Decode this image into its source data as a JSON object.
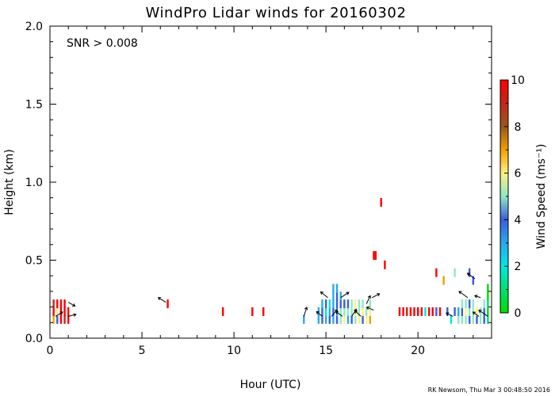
{
  "chart_data": {
    "type": "scatter",
    "title": "WindPro Lidar winds for 20160302",
    "xlabel": "Hour (UTC)",
    "ylabel": "Height (km)",
    "xlim": [
      0,
      24
    ],
    "ylim": [
      0,
      2.0
    ],
    "xticks": [
      0,
      5,
      10,
      15,
      20
    ],
    "yticks": [
      0.0,
      0.5,
      1.0,
      1.5,
      2.0
    ],
    "ytick_labels": [
      "0.0",
      "0.5",
      "1.0",
      "1.5",
      "2.0"
    ],
    "annotation": "SNR > 0.008",
    "credit": "RK Newsom, Thu Mar  3 00:48:50 2016",
    "colorbar": {
      "label": "Wind Speed (ms⁻¹)",
      "min": 0,
      "max": 10,
      "ticks": [
        0,
        2,
        4,
        6,
        8,
        10
      ],
      "colors": [
        "#00dd00",
        "#00e070",
        "#00e8e0",
        "#2aa8f0",
        "#3a5ed8",
        "#8ee8c8",
        "#fff080",
        "#f0a000",
        "#9a5818",
        "#c02818",
        "#ff0000"
      ]
    },
    "series": [
      {
        "values": [
          {
            "x": 0.2,
            "y": 0.12,
            "speed": 7.2
          },
          {
            "x": 0.2,
            "y": 0.17,
            "speed": 10.0
          },
          {
            "x": 0.2,
            "y": 0.22,
            "speed": 9.0
          },
          {
            "x": 0.4,
            "y": 0.12,
            "speed": 4.3
          },
          {
            "x": 0.4,
            "y": 0.17,
            "speed": 6.3
          },
          {
            "x": 0.4,
            "y": 0.22,
            "speed": 10.0
          },
          {
            "x": 0.6,
            "y": 0.12,
            "speed": 10.0
          },
          {
            "x": 0.6,
            "y": 0.17,
            "speed": 10.0
          },
          {
            "x": 0.6,
            "y": 0.22,
            "speed": 10.0
          },
          {
            "x": 0.8,
            "y": 0.12,
            "speed": 9.2
          },
          {
            "x": 0.8,
            "y": 0.17,
            "speed": 10.0
          },
          {
            "x": 0.8,
            "y": 0.22,
            "speed": 10.0
          },
          {
            "x": 1.0,
            "y": 0.12,
            "speed": 10.0
          },
          {
            "x": 1.0,
            "y": 0.17,
            "speed": 9.6
          },
          {
            "x": 6.4,
            "y": 0.22,
            "speed": 10.0
          },
          {
            "x": 9.4,
            "y": 0.17,
            "speed": 10.0
          },
          {
            "x": 11.0,
            "y": 0.17,
            "speed": 10.0
          },
          {
            "x": 11.6,
            "y": 0.17,
            "speed": 10.0
          },
          {
            "x": 13.8,
            "y": 0.12,
            "speed": 2.6
          },
          {
            "x": 14.6,
            "y": 0.12,
            "speed": 2.8
          },
          {
            "x": 14.6,
            "y": 0.17,
            "speed": 3.2
          },
          {
            "x": 14.8,
            "y": 0.12,
            "speed": 3.5
          },
          {
            "x": 14.8,
            "y": 0.17,
            "speed": 4.2
          },
          {
            "x": 14.8,
            "y": 0.22,
            "speed": 3.0
          },
          {
            "x": 15.0,
            "y": 0.12,
            "speed": 3.1
          },
          {
            "x": 15.0,
            "y": 0.17,
            "speed": 2.4
          },
          {
            "x": 15.0,
            "y": 0.22,
            "speed": 3.6
          },
          {
            "x": 15.2,
            "y": 0.12,
            "speed": 4.0
          },
          {
            "x": 15.2,
            "y": 0.17,
            "speed": 3.3
          },
          {
            "x": 15.2,
            "y": 0.22,
            "speed": 2.2
          },
          {
            "x": 15.4,
            "y": 0.12,
            "speed": 2.5
          },
          {
            "x": 15.4,
            "y": 0.17,
            "speed": 4.4
          },
          {
            "x": 15.4,
            "y": 0.22,
            "speed": 3.1
          },
          {
            "x": 15.4,
            "y": 0.27,
            "speed": 2.9
          },
          {
            "x": 15.4,
            "y": 0.32,
            "speed": 3.4
          },
          {
            "x": 15.6,
            "y": 0.12,
            "speed": 3.7
          },
          {
            "x": 15.6,
            "y": 0.17,
            "speed": 2.9
          },
          {
            "x": 15.6,
            "y": 0.22,
            "speed": 4.1
          },
          {
            "x": 15.6,
            "y": 0.27,
            "speed": 3.6
          },
          {
            "x": 15.6,
            "y": 0.32,
            "speed": 2.7
          },
          {
            "x": 15.8,
            "y": 0.12,
            "speed": 4.6
          },
          {
            "x": 15.8,
            "y": 0.17,
            "speed": 5.2
          },
          {
            "x": 15.8,
            "y": 0.22,
            "speed": 3.9
          },
          {
            "x": 15.8,
            "y": 0.27,
            "speed": 3.0
          },
          {
            "x": 16.0,
            "y": 0.12,
            "speed": 5.6
          },
          {
            "x": 16.0,
            "y": 0.17,
            "speed": 4.8
          },
          {
            "x": 16.0,
            "y": 0.22,
            "speed": 4.3
          },
          {
            "x": 16.2,
            "y": 0.12,
            "speed": 3.4
          },
          {
            "x": 16.2,
            "y": 0.17,
            "speed": 5.1
          },
          {
            "x": 16.2,
            "y": 0.22,
            "speed": 4.0
          },
          {
            "x": 16.4,
            "y": 0.12,
            "speed": 4.1
          },
          {
            "x": 16.4,
            "y": 0.17,
            "speed": 4.9
          },
          {
            "x": 16.4,
            "y": 0.22,
            "speed": 5.3
          },
          {
            "x": 16.6,
            "y": 0.12,
            "speed": 5.4
          },
          {
            "x": 16.6,
            "y": 0.17,
            "speed": 6.2
          },
          {
            "x": 16.6,
            "y": 0.22,
            "speed": 5.5
          },
          {
            "x": 16.8,
            "y": 0.12,
            "speed": 6.4
          },
          {
            "x": 16.8,
            "y": 0.17,
            "speed": 5.0
          },
          {
            "x": 16.8,
            "y": 0.22,
            "speed": 4.6
          },
          {
            "x": 17.0,
            "y": 0.12,
            "speed": 4.4
          },
          {
            "x": 17.0,
            "y": 0.17,
            "speed": 5.8
          },
          {
            "x": 17.0,
            "y": 0.22,
            "speed": 5.0
          },
          {
            "x": 17.2,
            "y": 0.12,
            "speed": 5.9
          },
          {
            "x": 17.2,
            "y": 0.17,
            "speed": 4.7
          },
          {
            "x": 17.4,
            "y": 0.12,
            "speed": 7.0
          },
          {
            "x": 17.4,
            "y": 0.17,
            "speed": 5.7
          },
          {
            "x": 17.4,
            "y": 0.22,
            "speed": 4.5
          },
          {
            "x": 17.6,
            "y": 0.53,
            "speed": 10.0
          },
          {
            "x": 17.7,
            "y": 0.53,
            "speed": 10.0
          },
          {
            "x": 18.0,
            "y": 0.87,
            "speed": 10.0
          },
          {
            "x": 18.2,
            "y": 0.47,
            "speed": 10.0
          },
          {
            "x": 19.0,
            "y": 0.17,
            "speed": 10.0
          },
          {
            "x": 19.2,
            "y": 0.17,
            "speed": 10.0
          },
          {
            "x": 19.4,
            "y": 0.17,
            "speed": 9.2
          },
          {
            "x": 19.6,
            "y": 0.17,
            "speed": 10.0
          },
          {
            "x": 19.8,
            "y": 0.17,
            "speed": 10.0
          },
          {
            "x": 20.0,
            "y": 0.17,
            "speed": 10.0
          },
          {
            "x": 20.2,
            "y": 0.17,
            "speed": 9.5
          },
          {
            "x": 20.4,
            "y": 0.17,
            "speed": 2.4
          },
          {
            "x": 20.6,
            "y": 0.17,
            "speed": 10.0
          },
          {
            "x": 20.8,
            "y": 0.17,
            "speed": 10.0
          },
          {
            "x": 21.0,
            "y": 0.17,
            "speed": 4.3
          },
          {
            "x": 21.0,
            "y": 0.42,
            "speed": 10.0
          },
          {
            "x": 21.2,
            "y": 0.17,
            "speed": 10.0
          },
          {
            "x": 21.4,
            "y": 0.37,
            "speed": 6.5
          },
          {
            "x": 21.6,
            "y": 0.17,
            "speed": 4.1
          },
          {
            "x": 21.8,
            "y": 0.12,
            "speed": 2.0
          },
          {
            "x": 22.0,
            "y": 0.17,
            "speed": 3.7
          },
          {
            "x": 22.0,
            "y": 0.42,
            "speed": 4.5
          },
          {
            "x": 22.2,
            "y": 0.12,
            "speed": 4.6
          },
          {
            "x": 22.2,
            "y": 0.17,
            "speed": 3.0
          },
          {
            "x": 22.4,
            "y": 0.12,
            "speed": 5.0
          },
          {
            "x": 22.4,
            "y": 0.17,
            "speed": 4.3
          },
          {
            "x": 22.4,
            "y": 0.22,
            "speed": 5.4
          },
          {
            "x": 22.6,
            "y": 0.12,
            "speed": 4.9
          },
          {
            "x": 22.6,
            "y": 0.17,
            "speed": 5.5
          },
          {
            "x": 22.6,
            "y": 0.22,
            "speed": 4.8
          },
          {
            "x": 22.8,
            "y": 0.12,
            "speed": 3.9
          },
          {
            "x": 22.8,
            "y": 0.17,
            "speed": 5.1
          },
          {
            "x": 22.8,
            "y": 0.22,
            "speed": 4.1
          },
          {
            "x": 22.8,
            "y": 0.42,
            "speed": 4.4
          },
          {
            "x": 23.0,
            "y": 0.12,
            "speed": 5.3
          },
          {
            "x": 23.0,
            "y": 0.17,
            "speed": 4.5
          },
          {
            "x": 23.0,
            "y": 0.22,
            "speed": 4.6
          },
          {
            "x": 23.0,
            "y": 0.37,
            "speed": 3.8
          },
          {
            "x": 23.2,
            "y": 0.12,
            "speed": 4.2
          },
          {
            "x": 23.2,
            "y": 0.17,
            "speed": 5.6
          },
          {
            "x": 23.4,
            "y": 0.12,
            "speed": 4.7
          },
          {
            "x": 23.4,
            "y": 0.17,
            "speed": 5.2
          },
          {
            "x": 23.6,
            "y": 0.12,
            "speed": 4.4
          },
          {
            "x": 23.6,
            "y": 0.17,
            "speed": 3.6
          },
          {
            "x": 23.6,
            "y": 0.22,
            "speed": 4.9
          },
          {
            "x": 23.8,
            "y": 0.12,
            "speed": 0.5
          },
          {
            "x": 23.8,
            "y": 0.17,
            "speed": 0.3
          },
          {
            "x": 23.8,
            "y": 0.22,
            "speed": 0.6
          },
          {
            "x": 23.8,
            "y": 0.27,
            "speed": 0.2
          },
          {
            "x": 23.8,
            "y": 0.32,
            "speed": 0.4
          }
        ]
      }
    ],
    "vectors": [
      {
        "x": 0.3,
        "y": 0.14,
        "dx": 1.5,
        "dy": 0.9
      },
      {
        "x": 1.0,
        "y": 0.14,
        "dx": 1.6,
        "dy": 0.4
      },
      {
        "x": 1.0,
        "y": 0.23,
        "dx": 1.4,
        "dy": -0.8
      },
      {
        "x": 6.3,
        "y": 0.23,
        "dx": -1.6,
        "dy": 1.0
      },
      {
        "x": 13.8,
        "y": 0.14,
        "dx": 0.6,
        "dy": 1.9
      },
      {
        "x": 14.8,
        "y": 0.14,
        "dx": -1.2,
        "dy": 1.0
      },
      {
        "x": 15.3,
        "y": 0.14,
        "dx": 1.2,
        "dy": 1.4
      },
      {
        "x": 15.9,
        "y": 0.14,
        "dx": -1.4,
        "dy": 1.0
      },
      {
        "x": 16.4,
        "y": 0.14,
        "dx": 1.0,
        "dy": 1.5
      },
      {
        "x": 16.9,
        "y": 0.14,
        "dx": -1.3,
        "dy": 1.2
      },
      {
        "x": 15.1,
        "y": 0.26,
        "dx": -1.5,
        "dy": 1.2
      },
      {
        "x": 15.8,
        "y": 0.26,
        "dx": 1.7,
        "dy": 1.1
      },
      {
        "x": 17.5,
        "y": 0.26,
        "dx": 1.6,
        "dy": 0.8
      },
      {
        "x": 17.6,
        "y": 0.18,
        "dx": -1.5,
        "dy": 0.6
      },
      {
        "x": 17.2,
        "y": 0.22,
        "dx": 0.8,
        "dy": 1.7
      },
      {
        "x": 21.9,
        "y": 0.14,
        "dx": -1.4,
        "dy": 0.7
      },
      {
        "x": 22.7,
        "y": 0.26,
        "dx": -1.8,
        "dy": 1.3
      },
      {
        "x": 23.1,
        "y": 0.38,
        "dx": -1.6,
        "dy": 1.2
      },
      {
        "x": 23.4,
        "y": 0.26,
        "dx": -1.2,
        "dy": 0.4
      },
      {
        "x": 23.8,
        "y": 0.14,
        "dx": -1.9,
        "dy": 1.3
      },
      {
        "x": 23.3,
        "y": 0.14,
        "dx": -1.2,
        "dy": 0.9
      }
    ]
  }
}
